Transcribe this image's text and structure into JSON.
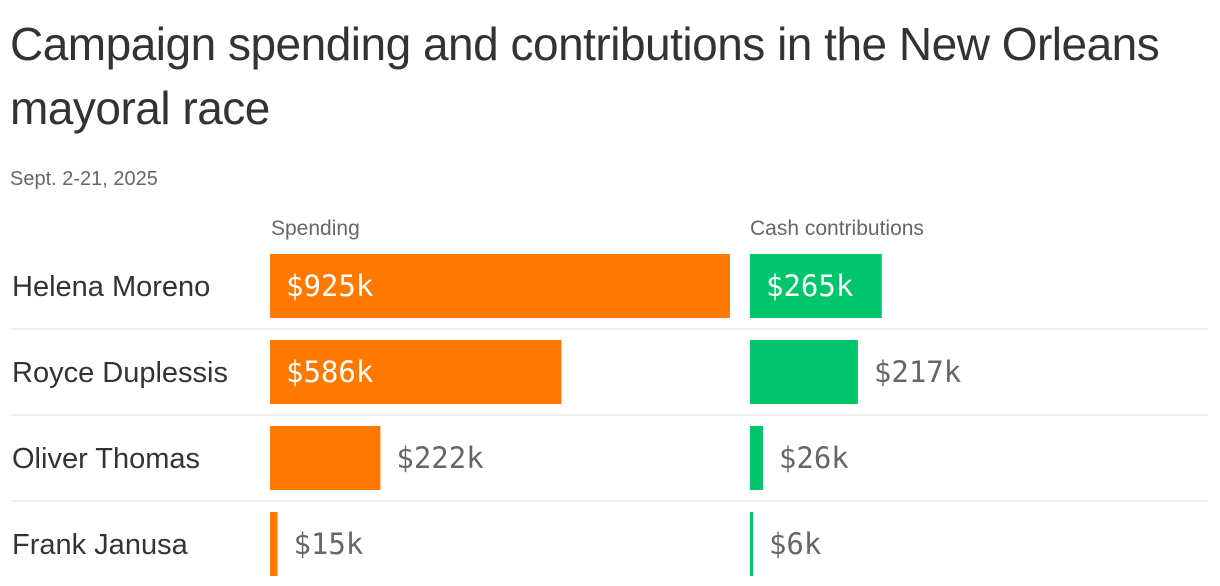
{
  "chart_data": {
    "type": "bar",
    "title": "Campaign spending and contributions in the New Orleans mayoral race",
    "subtitle": "Sept. 2-21, 2025",
    "categories": [
      "Helena Moreno",
      "Royce Duplessis",
      "Oliver Thomas",
      "Frank Janusa"
    ],
    "series": [
      {
        "name": "Spending",
        "color": "#ff7900",
        "values": [
          925,
          586,
          222,
          15
        ],
        "labels": [
          "$925k",
          "$586k",
          "$222k",
          "$15k"
        ]
      },
      {
        "name": "Cash contributions",
        "color": "#00c66b",
        "values": [
          265,
          217,
          26,
          6
        ],
        "labels": [
          "$265k",
          "$217k",
          "$26k",
          "$6k"
        ]
      }
    ],
    "unit": "thousands of dollars",
    "grid": false,
    "legend": "column headers above each bar group"
  }
}
